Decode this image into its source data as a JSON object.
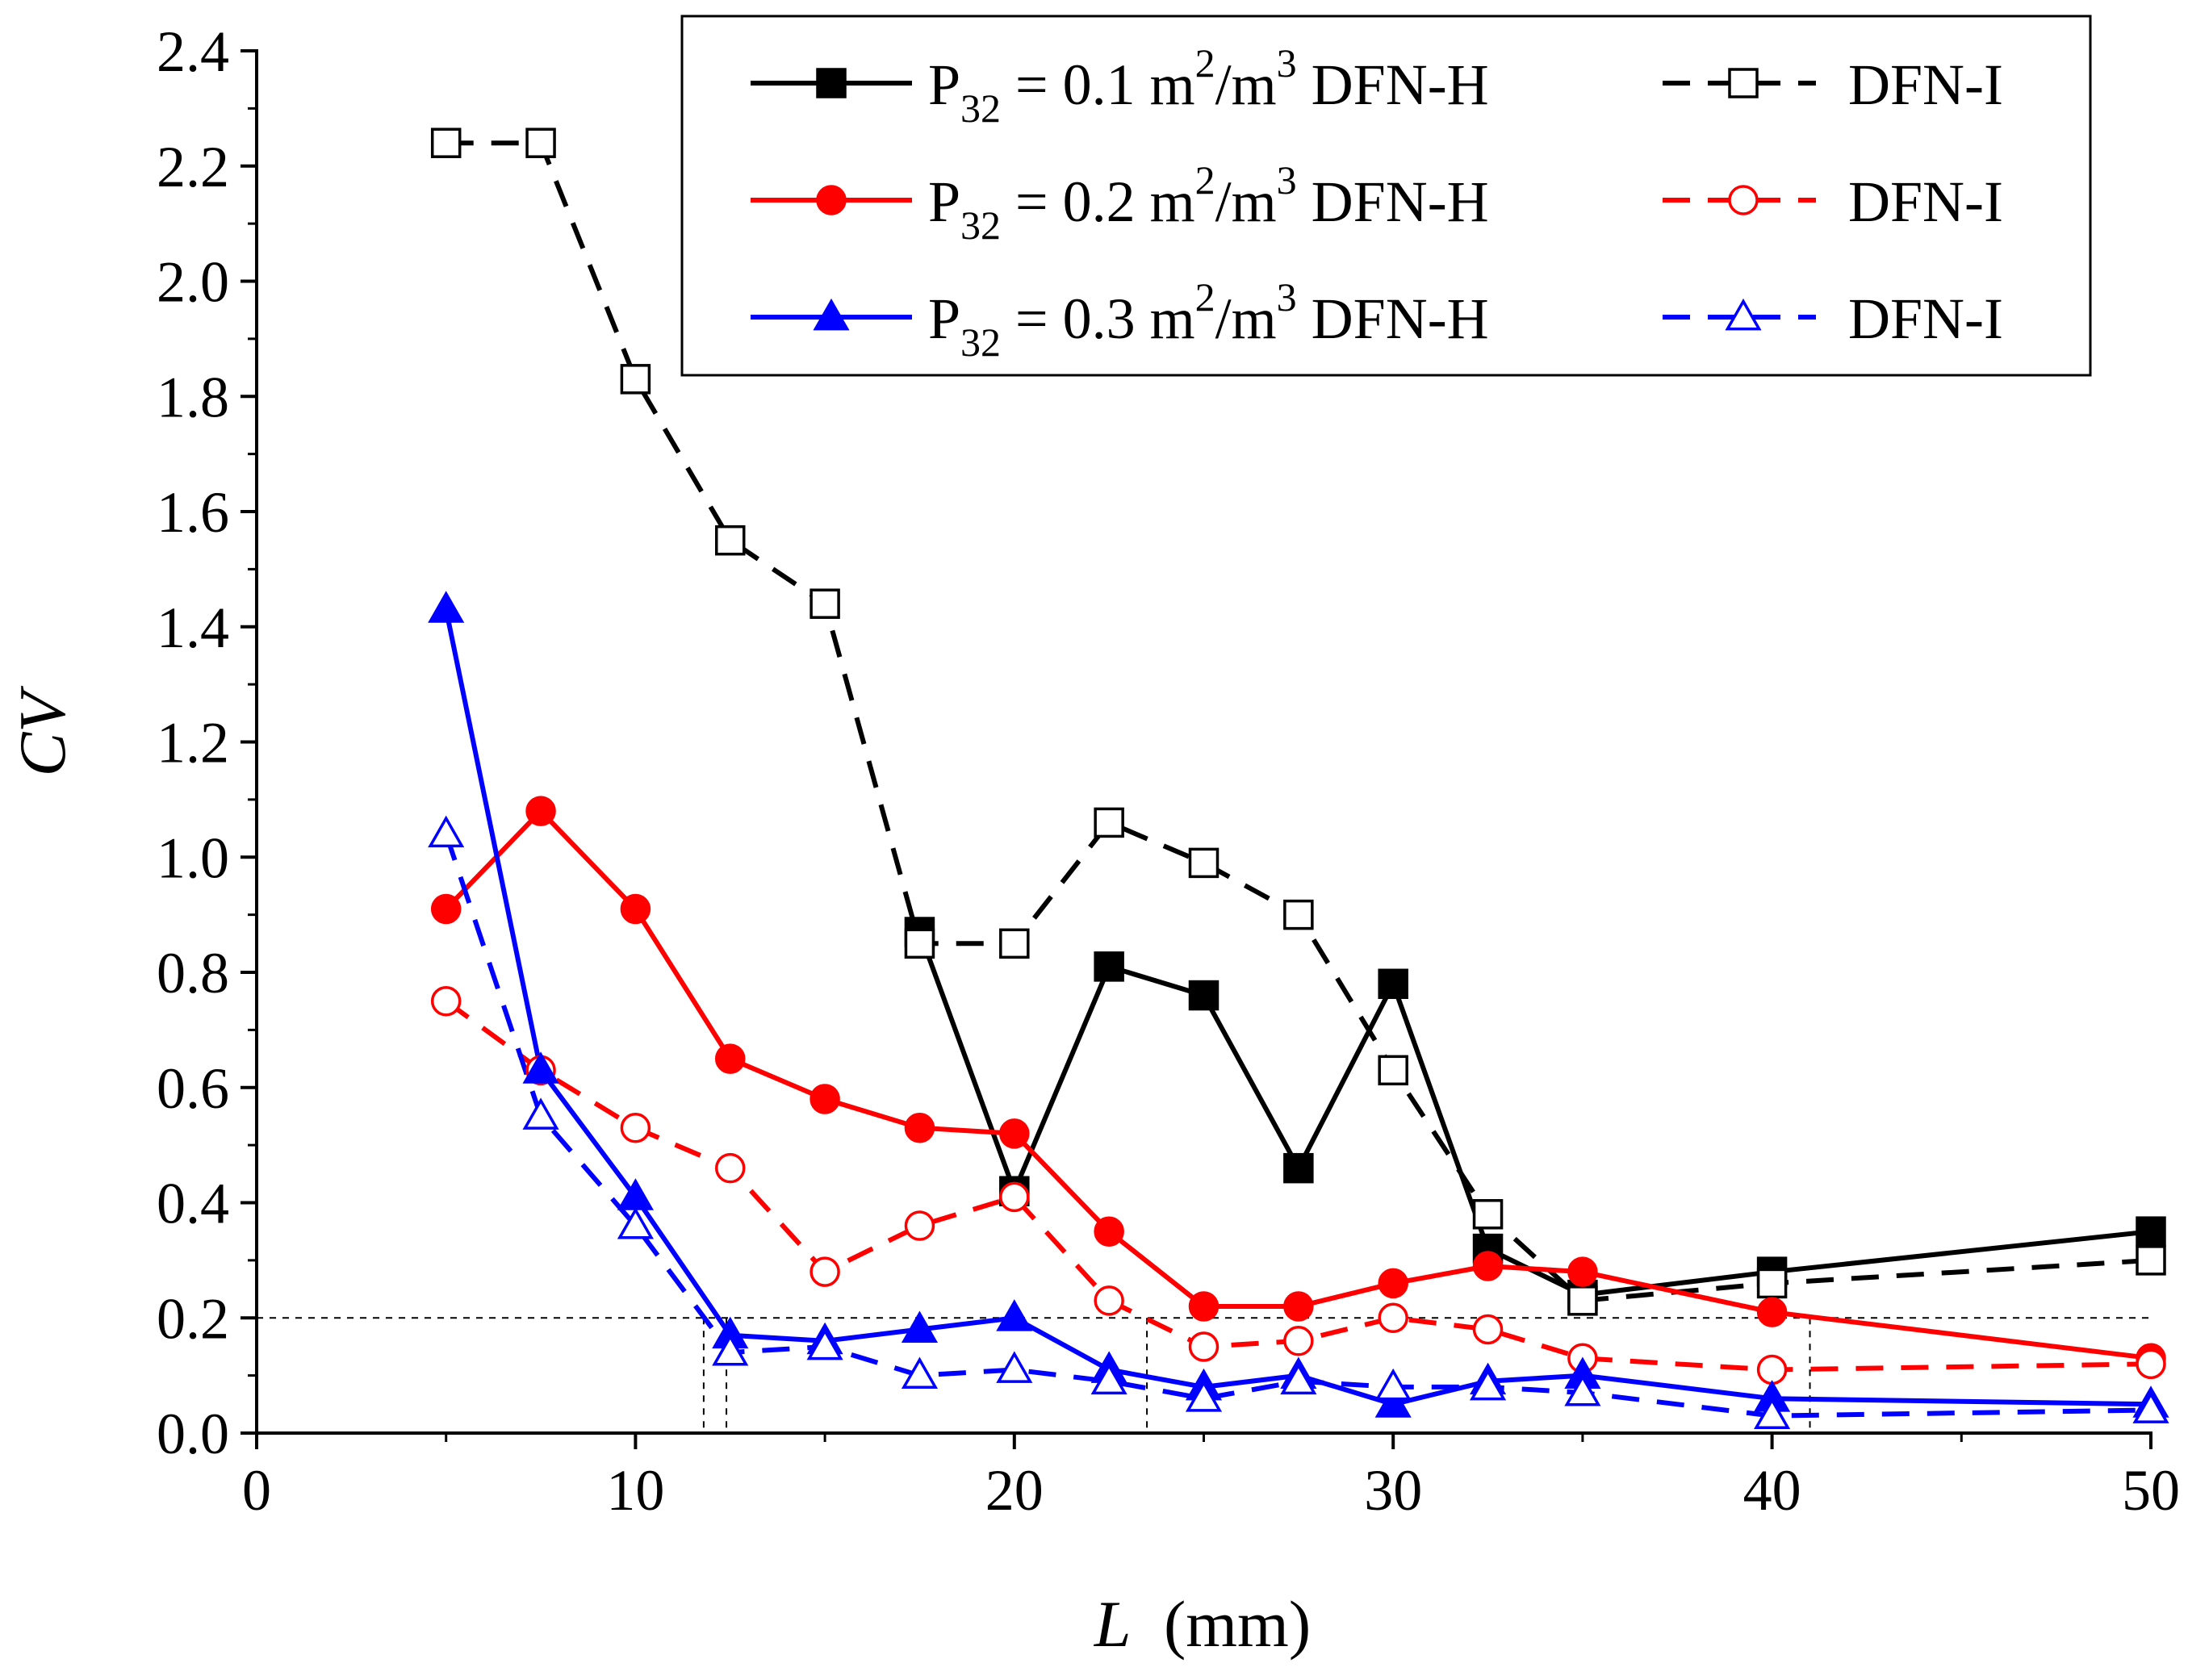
{
  "chart_data": {
    "type": "line",
    "title": "",
    "xlabel": "L",
    "xlabel_unit": "(mm)",
    "ylabel": "CV",
    "xlim": [
      0,
      50
    ],
    "ylim": [
      0,
      2.4
    ],
    "x_ticks": [
      "0",
      "10",
      "20",
      "30",
      "40",
      "50"
    ],
    "y_ticks": [
      "0.0",
      "0.2",
      "0.4",
      "0.6",
      "0.8",
      "1.0",
      "1.2",
      "1.4",
      "1.6",
      "1.8",
      "2.0",
      "2.2",
      "2.4"
    ],
    "grid": false,
    "legend_position": "top-right",
    "legend_rows": [
      {
        "prefix": "P",
        "sub": "32",
        "value": " = 0.1 m",
        "sup1": "2",
        "unit_mid": "/m",
        "sup2": "3",
        "solid_name": " DFN-H",
        "dashed_name": "DFN-I"
      },
      {
        "prefix": "P",
        "sub": "32",
        "value": " = 0.2 m",
        "sup1": "2",
        "unit_mid": "/m",
        "sup2": "3",
        "solid_name": " DFN-H",
        "dashed_name": "DFN-I"
      },
      {
        "prefix": "P",
        "sub": "32",
        "value": " = 0.3 m",
        "sup1": "2",
        "unit_mid": "/m",
        "sup2": "3",
        "solid_name": " DFN-H",
        "dashed_name": "DFN-I"
      }
    ],
    "series": [
      {
        "name": "P32 = 0.1 m2/m3 DFN-H",
        "color": "#000000",
        "marker": "square",
        "filled": true,
        "dashed": false,
        "x": [
          17.5,
          20,
          22.5,
          25,
          27.5,
          30,
          32.5,
          35,
          40,
          50
        ],
        "y": [
          0.87,
          0.42,
          0.81,
          0.76,
          0.46,
          0.78,
          0.32,
          0.24,
          0.28,
          0.35
        ]
      },
      {
        "name": "P32 = 0.1 m2/m3 DFN-I",
        "color": "#000000",
        "marker": "square",
        "filled": false,
        "dashed": true,
        "x": [
          5,
          7.5,
          10,
          12.5,
          15,
          17.5,
          20,
          22.5,
          25,
          27.5,
          30,
          32.5,
          35,
          40,
          50
        ],
        "y": [
          2.24,
          2.24,
          1.83,
          1.55,
          1.44,
          0.85,
          0.85,
          1.06,
          0.99,
          0.9,
          0.63,
          0.38,
          0.23,
          0.26,
          0.3
        ]
      },
      {
        "name": "P32 = 0.2 m2/m3 DFN-H",
        "color": "#ff0000",
        "marker": "circle",
        "filled": true,
        "dashed": false,
        "x": [
          5,
          7.5,
          10,
          12.5,
          15,
          17.5,
          20,
          22.5,
          25,
          27.5,
          30,
          32.5,
          35,
          40,
          50
        ],
        "y": [
          0.91,
          1.08,
          0.91,
          0.65,
          0.58,
          0.53,
          0.52,
          0.35,
          0.22,
          0.22,
          0.26,
          0.29,
          0.28,
          0.21,
          0.13
        ]
      },
      {
        "name": "P32 = 0.2 m2/m3 DFN-I",
        "color": "#ff0000",
        "marker": "circle",
        "filled": false,
        "dashed": true,
        "x": [
          5,
          7.5,
          10,
          12.5,
          15,
          17.5,
          20,
          22.5,
          25,
          27.5,
          30,
          32.5,
          35,
          40,
          50
        ],
        "y": [
          0.75,
          0.63,
          0.53,
          0.46,
          0.28,
          0.36,
          0.41,
          0.23,
          0.15,
          0.16,
          0.2,
          0.18,
          0.13,
          0.11,
          0.12
        ]
      },
      {
        "name": "P32 = 0.3 m2/m3 DFN-H",
        "color": "#0000ff",
        "marker": "triangle",
        "filled": true,
        "dashed": false,
        "x": [
          5,
          7.5,
          10,
          12.5,
          15,
          17.5,
          20,
          22.5,
          25,
          27.5,
          30,
          32.5,
          35,
          40,
          50
        ],
        "y": [
          1.43,
          0.63,
          0.41,
          0.17,
          0.16,
          0.18,
          0.2,
          0.11,
          0.08,
          0.1,
          0.05,
          0.09,
          0.1,
          0.06,
          0.05
        ]
      },
      {
        "name": "P32 = 0.3 m2/m3 DFN-I",
        "color": "#0000ff",
        "marker": "triangle",
        "filled": false,
        "dashed": true,
        "x": [
          5,
          7.5,
          10,
          12.5,
          15,
          17.5,
          20,
          22.5,
          25,
          27.5,
          30,
          32.5,
          35,
          40,
          50
        ],
        "y": [
          1.04,
          0.55,
          0.36,
          0.14,
          0.15,
          0.1,
          0.11,
          0.09,
          0.06,
          0.09,
          0.08,
          0.08,
          0.07,
          0.03,
          0.04
        ]
      }
    ],
    "reference_lines": {
      "horizontal_y": 0.2,
      "vertical_x": [
        11.8,
        12.4,
        23.5,
        41.0
      ]
    }
  }
}
